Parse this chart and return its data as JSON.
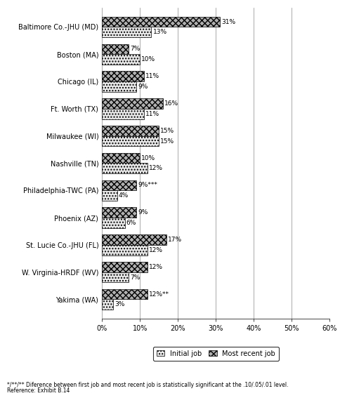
{
  "categories": [
    "Baltimore Co.-JHU (MD)",
    "Boston (MA)",
    "Chicago (IL)",
    "Ft. Worth (TX)",
    "Milwaukee (WI)",
    "Nashville (TN)",
    "Philadelphia-TWC (PA)",
    "Phoenix (AZ)",
    "St. Lucie Co.-JHU (FL)",
    "W. Virginia-HRDF (WV)",
    "Yakima (WA)"
  ],
  "initial_job": [
    13,
    10,
    9,
    11,
    15,
    12,
    4,
    6,
    12,
    7,
    3
  ],
  "most_recent_job": [
    31,
    7,
    11,
    16,
    15,
    10,
    9,
    9,
    17,
    12,
    12
  ],
  "initial_labels": [
    "13%",
    "10%",
    "9%",
    "11%",
    "15%",
    "12%",
    "4%",
    "6%",
    "12%",
    "7%",
    "3%"
  ],
  "recent_labels": [
    "31%",
    "7%",
    "11%",
    "16%",
    "15%",
    "10%",
    "9%***",
    "9%",
    "17%",
    "12%",
    "12%**"
  ],
  "initial_hatch": "....",
  "recent_hatch": "xxxx",
  "xlim": [
    0,
    60
  ],
  "xticks": [
    0,
    10,
    20,
    30,
    40,
    50,
    60
  ],
  "xticklabels": [
    "0%",
    "10%",
    "20%",
    "30%",
    "40%",
    "50%",
    "60%"
  ],
  "footnote_line1": "*/**/** Diference between first job and most recent job is statistically significant at the .10/.05/.01 level.",
  "footnote_line2": "Reference: Exhibit B.14",
  "legend_initial": "Initial job",
  "legend_recent": "Most recent job",
  "label_fontsize": 6.5,
  "tick_fontsize": 7,
  "bar_height": 0.38,
  "background_color": "#ffffff"
}
